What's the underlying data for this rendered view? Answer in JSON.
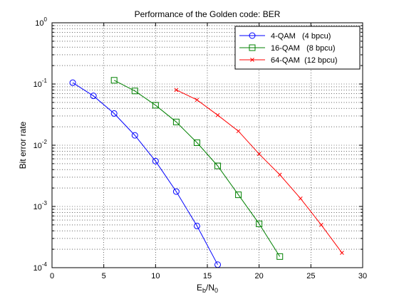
{
  "chart_data": {
    "type": "line",
    "title": "Performance of the Golden code: BER",
    "xlabel": {
      "base": "E",
      "sub1": "b",
      "mid": "/N",
      "sub2": "0"
    },
    "ylabel": "Bit error rate",
    "xlim": [
      0,
      30
    ],
    "ylim": [
      0.0001,
      1
    ],
    "y_scale": "log",
    "grid": true,
    "legend_position": "top-right",
    "x_ticks": [
      0,
      5,
      10,
      15,
      20,
      25,
      30
    ],
    "y_ticks": [
      {
        "value": 0.0001,
        "base": "10",
        "exp": "-4"
      },
      {
        "value": 0.001,
        "base": "10",
        "exp": "-3"
      },
      {
        "value": 0.01,
        "base": "10",
        "exp": "-2"
      },
      {
        "value": 0.1,
        "base": "10",
        "exp": "-1"
      },
      {
        "value": 1,
        "base": "10",
        "exp": "0"
      }
    ],
    "series": [
      {
        "name": "4-QAM   (4 bpcu)",
        "color": "#0000ff",
        "marker": "circle",
        "x": [
          2,
          4,
          6,
          8,
          10,
          12,
          14,
          16
        ],
        "y": [
          0.105,
          0.064,
          0.033,
          0.0145,
          0.0055,
          0.00175,
          0.00048,
          0.000112
        ]
      },
      {
        "name": "16-QAM   (8 bpcu)",
        "color": "#008000",
        "marker": "square",
        "x": [
          6,
          8,
          10,
          12,
          14,
          16,
          18,
          20,
          22
        ],
        "y": [
          0.115,
          0.077,
          0.045,
          0.024,
          0.011,
          0.0046,
          0.00155,
          0.00052,
          0.000152
        ]
      },
      {
        "name": "64-QAM  (12 bpcu)",
        "color": "#ff0000",
        "marker": "x",
        "x": [
          12,
          14,
          16,
          18,
          20,
          22,
          24,
          26,
          28
        ],
        "y": [
          0.08,
          0.055,
          0.031,
          0.017,
          0.0072,
          0.0033,
          0.00135,
          0.0005,
          0.000175
        ]
      }
    ]
  }
}
